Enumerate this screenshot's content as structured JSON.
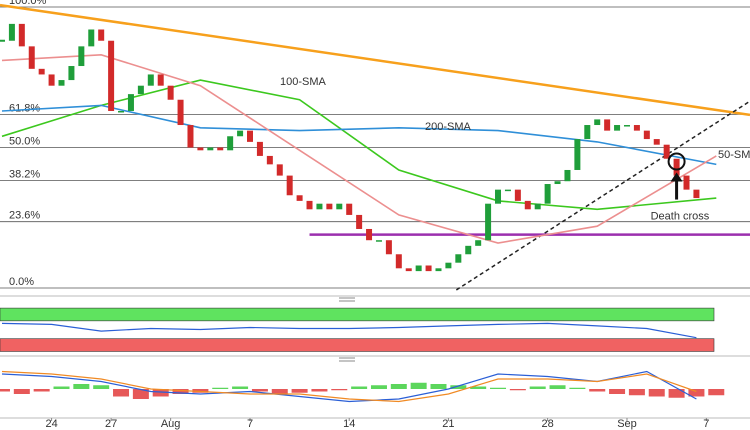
{
  "chart_data": {
    "type": "candlestick",
    "x": [
      -2.5,
      -2,
      -1.5,
      -1,
      -0.5,
      0,
      0.5,
      1,
      1.5,
      2,
      2.5,
      3,
      3.5,
      4,
      4.5,
      5,
      5.5,
      6,
      6.5,
      7,
      7.5,
      8,
      8.5,
      9,
      9.5,
      10,
      10.5,
      11,
      11.5,
      12,
      12.5,
      13,
      13.5,
      14,
      14.5,
      15,
      15.5,
      16,
      16.5,
      17,
      17.5,
      18,
      18.5,
      19,
      19.5,
      20,
      20.5,
      21,
      21.5,
      22,
      22.5,
      23,
      23.5,
      24,
      24.5,
      25,
      25.5,
      26,
      26.5,
      27,
      27.5,
      28,
      28.5,
      29,
      29.5,
      30,
      30.5,
      31,
      31.5,
      32,
      32.5
    ],
    "values": [
      88,
      94,
      86,
      78,
      76,
      72,
      74,
      79,
      86,
      92,
      88,
      63,
      63,
      69,
      72,
      76,
      72,
      67,
      58,
      50,
      49,
      50,
      49,
      54,
      56,
      52,
      47,
      44,
      40,
      33,
      31,
      28,
      30,
      28,
      30,
      26,
      21,
      17,
      17,
      12,
      7,
      6,
      8,
      6,
      7,
      9,
      12,
      15,
      17,
      30,
      35,
      35,
      31,
      28,
      30,
      37,
      38,
      42,
      53,
      58,
      60,
      56,
      58,
      58,
      56,
      53,
      51,
      46,
      40,
      35,
      32
    ],
    "up_color": "#1f9e3a",
    "down_color": "#d22a2a",
    "xlim": [
      -2.6,
      35.2
    ],
    "ylim": [
      -2.5,
      102.5
    ],
    "xticks": [
      {
        "value": 0,
        "label": "24"
      },
      {
        "value": 3,
        "label": "27"
      },
      {
        "value": 6,
        "label": "Aug"
      },
      {
        "value": 10,
        "label": "7"
      },
      {
        "value": 15,
        "label": "14"
      },
      {
        "value": 20,
        "label": "21"
      },
      {
        "value": 25,
        "label": "28"
      },
      {
        "value": 29,
        "label": "Sep"
      },
      {
        "value": 33,
        "label": "7"
      }
    ],
    "yticks": [
      {
        "value": 100,
        "label": "100.0%"
      },
      {
        "value": 61.8,
        "label": "61.8%"
      },
      {
        "value": 50,
        "label": "50.0%"
      },
      {
        "value": 38.2,
        "label": "38.2%"
      },
      {
        "value": 23.6,
        "label": "23.6%"
      },
      {
        "value": 0,
        "label": "0.0%"
      }
    ],
    "series": [
      {
        "name": "100-SMA",
        "color": "#3cc81e",
        "x": [
          -2.5,
          2.5,
          7.5,
          12.5,
          17.5,
          22.5,
          27.5,
          33.5
        ],
        "values": [
          54,
          65,
          74,
          67,
          42,
          31,
          28,
          32
        ]
      },
      {
        "name": "200-SMA",
        "color": "#2f8fd8",
        "x": [
          -2.5,
          2.5,
          7.5,
          12.5,
          17.5,
          22.5,
          27.5,
          33.5
        ],
        "values": [
          63,
          65,
          57,
          56,
          57,
          56,
          52,
          44
        ]
      },
      {
        "name": "50-SMA",
        "color": "#ec8f8f",
        "x": [
          -2.5,
          2.5,
          7.5,
          12.5,
          17.5,
          22.5,
          27.5,
          33.5
        ],
        "values": [
          81,
          83,
          72,
          49,
          26,
          16,
          22,
          47
        ]
      }
    ],
    "trendlines": [
      {
        "color": "#f7a01c",
        "from": [
          -2.6,
          100.7
        ],
        "to": [
          35.2,
          61.6
        ],
        "dash": false
      },
      {
        "color": "#222222",
        "from": [
          20.4,
          -0.7
        ],
        "to": [
          35.2,
          66.5
        ],
        "dash": true
      },
      {
        "color": "#9b2fae",
        "from": [
          13,
          19
        ],
        "to": [
          35.2,
          19
        ],
        "dash": false
      }
    ],
    "annotation": "Death cross",
    "cross_point": [
      31.5,
      45
    ],
    "rsi": {
      "x": [
        -2.5,
        0,
        2.5,
        5,
        7.5,
        10,
        12.5,
        15,
        17.5,
        20,
        22.5,
        25,
        27.5,
        30,
        32.5
      ],
      "values": [
        60,
        58,
        45,
        50,
        48,
        52,
        50,
        50,
        52,
        55,
        58,
        60,
        55,
        50,
        32
      ],
      "color": "#2b5fd6",
      "ylim": [
        0,
        100
      ],
      "zones": [
        {
          "range": [
            65,
            90
          ],
          "color": "#5fe35f"
        },
        {
          "range": [
            5,
            30
          ],
          "color": "#f06262"
        }
      ]
    },
    "macd": {
      "x": [
        -2.5,
        0,
        2.5,
        5,
        7.5,
        10,
        12.5,
        15,
        17.5,
        20,
        22.5,
        25,
        27.5,
        30,
        32.5
      ],
      "ylim": [
        -1,
        1
      ],
      "series": [
        {
          "color": "#2b5fd6",
          "values": [
            0.6,
            0.5,
            0.3,
            -0.1,
            -0.2,
            -0.1,
            -0.3,
            -0.5,
            -0.4,
            0.0,
            0.6,
            0.5,
            0.3,
            0.7,
            -0.4
          ]
        },
        {
          "color": "#f08a24",
          "values": [
            0.7,
            0.6,
            0.4,
            0.0,
            -0.1,
            -0.2,
            -0.2,
            -0.4,
            -0.5,
            -0.2,
            0.4,
            0.4,
            0.3,
            0.6,
            -0.1
          ]
        }
      ],
      "hist_x": [
        -2.5,
        -1.5,
        -0.5,
        0.5,
        1.5,
        2.5,
        3.5,
        4.5,
        5.5,
        6.5,
        7.5,
        8.5,
        9.5,
        10.5,
        11.5,
        12.5,
        13.5,
        14.5,
        15.5,
        16.5,
        17.5,
        18.5,
        19.5,
        20.5,
        21.5,
        22.5,
        23.5,
        24.5,
        25.5,
        26.5,
        27.5,
        28.5,
        29.5,
        30.5,
        31.5,
        32.5,
        33.5
      ],
      "hist": [
        -0.1,
        -0.2,
        -0.1,
        0.1,
        0.2,
        0.15,
        -0.3,
        -0.4,
        -0.3,
        -0.2,
        -0.15,
        0.05,
        0.1,
        -0.1,
        -0.2,
        -0.15,
        -0.1,
        -0.05,
        0.1,
        0.15,
        0.2,
        0.25,
        0.2,
        0.15,
        0.1,
        0.05,
        -0.05,
        0.1,
        0.15,
        0.05,
        -0.1,
        -0.2,
        -0.25,
        -0.3,
        -0.35,
        -0.3,
        -0.25
      ],
      "pos_color": "#3fcf3f",
      "neg_color": "#e23b3b"
    }
  }
}
